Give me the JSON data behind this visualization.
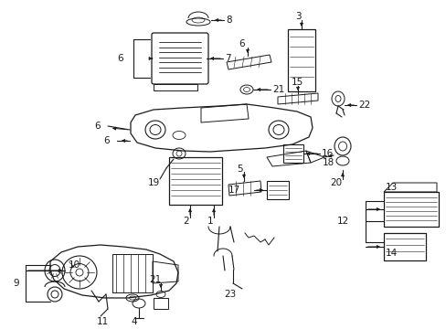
{
  "bg_color": "#ffffff",
  "lc": "#1a1a1a",
  "figsize": [
    4.89,
    3.6
  ],
  "dpi": 100
}
